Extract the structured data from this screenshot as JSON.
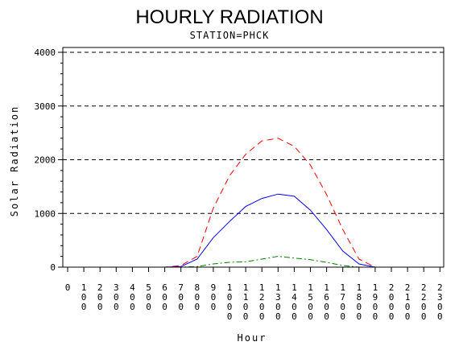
{
  "chart_data": {
    "type": "line",
    "title": "HOURLY RADIATION",
    "subtitle": "STATION=PHCK",
    "xlabel": "Hour",
    "ylabel": "Solar Radiation",
    "xlim": [
      0,
      2330
    ],
    "ylim": [
      0,
      4000
    ],
    "yticks": [
      0,
      1000,
      2000,
      3000,
      4000
    ],
    "xticks": [
      "0",
      "100",
      "200",
      "300",
      "400",
      "500",
      "600",
      "700",
      "800",
      "900",
      "1000",
      "1100",
      "1200",
      "1300",
      "1400",
      "1500",
      "1600",
      "1700",
      "1800",
      "1900",
      "2000",
      "2100",
      "2200",
      "2300"
    ],
    "grid": "horizontal-dashed",
    "x": [
      0,
      100,
      200,
      300,
      400,
      500,
      600,
      700,
      800,
      900,
      1000,
      1100,
      1200,
      1300,
      1400,
      1500,
      1600,
      1700,
      1800,
      1900,
      2000,
      2100,
      2200,
      2300
    ],
    "series": [
      {
        "color": "#ff0000",
        "dash": "dashed",
        "values": [
          0,
          0,
          0,
          0,
          0,
          0,
          0,
          30,
          200,
          1100,
          1700,
          2100,
          2350,
          2400,
          2250,
          1900,
          1350,
          700,
          150,
          0,
          0,
          0,
          0,
          0
        ]
      },
      {
        "color": "#0000ff",
        "dash": "solid",
        "values": [
          0,
          0,
          0,
          0,
          0,
          0,
          0,
          10,
          150,
          550,
          850,
          1130,
          1280,
          1360,
          1320,
          1060,
          700,
          300,
          60,
          0,
          0,
          0,
          0,
          0
        ]
      },
      {
        "color": "#008000",
        "dash": "dashdot",
        "values": [
          0,
          0,
          0,
          0,
          0,
          0,
          0,
          0,
          10,
          60,
          90,
          100,
          150,
          200,
          170,
          140,
          90,
          30,
          0,
          0,
          0,
          0,
          0,
          0
        ]
      }
    ]
  }
}
